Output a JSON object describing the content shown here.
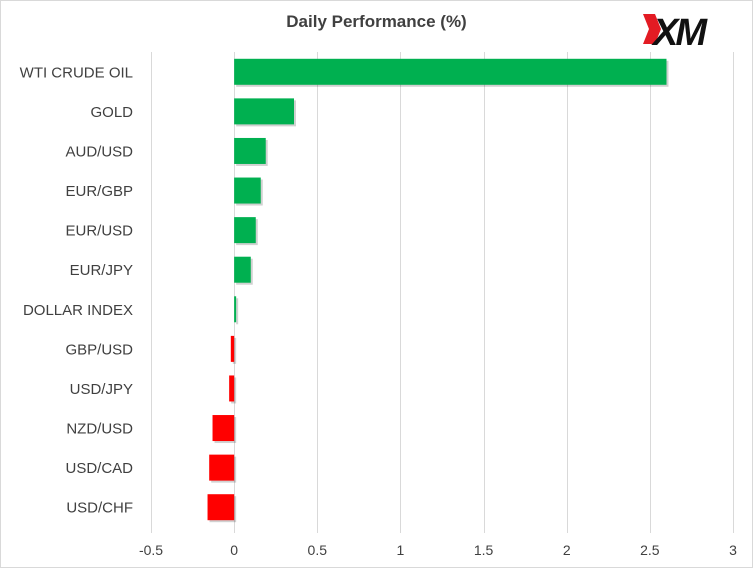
{
  "brand": {
    "logo_text": "XM",
    "accent": "#e31b23"
  },
  "chart_data": {
    "type": "bar",
    "orientation": "horizontal",
    "title": "Daily Performance (%)",
    "categories": [
      "WTI CRUDE OIL",
      "GOLD",
      "AUD/USD",
      "EUR/GBP",
      "EUR/USD",
      "EUR/JPY",
      "DOLLAR INDEX",
      "GBP/USD",
      "USD/JPY",
      "NZD/USD",
      "USD/CAD",
      "USD/CHF"
    ],
    "values": [
      2.6,
      0.36,
      0.19,
      0.16,
      0.13,
      0.1,
      0.01,
      -0.02,
      -0.03,
      -0.13,
      -0.15,
      -0.16
    ],
    "xlim": [
      -0.5,
      3
    ],
    "x_ticks": [
      "-0.5",
      "0",
      "0.5",
      "1",
      "1.5",
      "2",
      "2.5",
      "3"
    ],
    "x_tick_values": [
      -0.5,
      0,
      0.5,
      1,
      1.5,
      2,
      2.5,
      3
    ],
    "grid": "vertical",
    "legend": "none",
    "colors": {
      "positive": "#00b050",
      "negative": "#ff0000",
      "grid": "#d9d9d9",
      "text": "#404040"
    }
  }
}
